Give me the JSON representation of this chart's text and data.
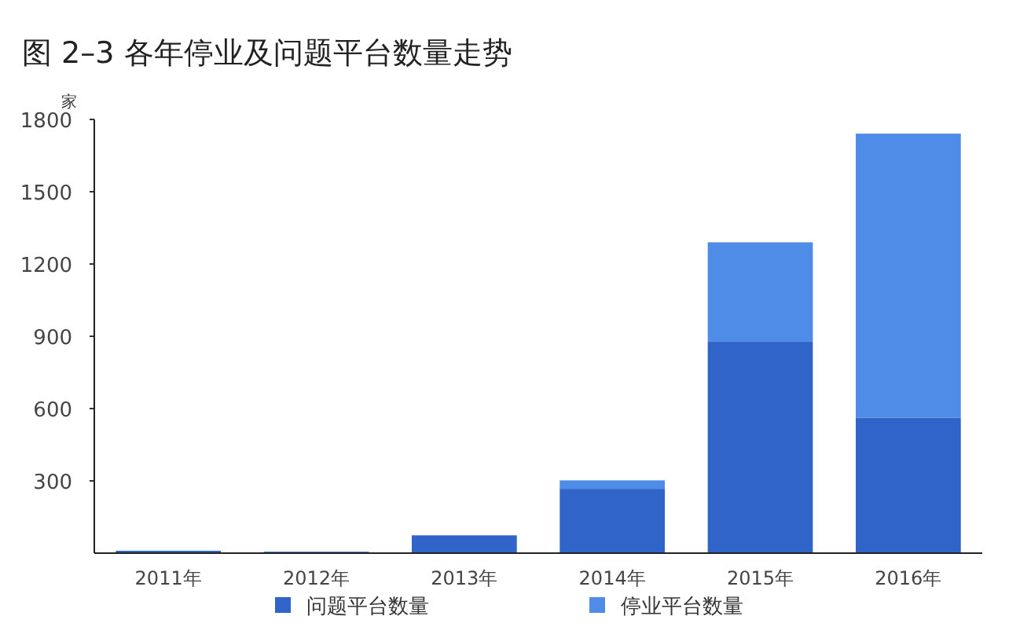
{
  "chart_data": {
    "type": "bar",
    "title": "图 2–3  各年停业及问题平台数量走势",
    "ylabel": "家",
    "stacked": true,
    "legend": "bottom",
    "grid": false,
    "categories": [
      "2011年",
      "2012年",
      "2013年",
      "2014年",
      "2015年",
      "2016年"
    ],
    "series": [
      {
        "name": "问题平台数量",
        "color": "#3064c8",
        "values": [
          10,
          6,
          74,
          267,
          877,
          562
        ]
      },
      {
        "name": "停业平台数量",
        "color": "#4f8ce8",
        "values": [
          0,
          0,
          0,
          35,
          413,
          1179
        ]
      }
    ],
    "ylim": [
      0,
      1800
    ],
    "yticks": [
      300,
      600,
      900,
      1200,
      1500,
      1800
    ]
  }
}
